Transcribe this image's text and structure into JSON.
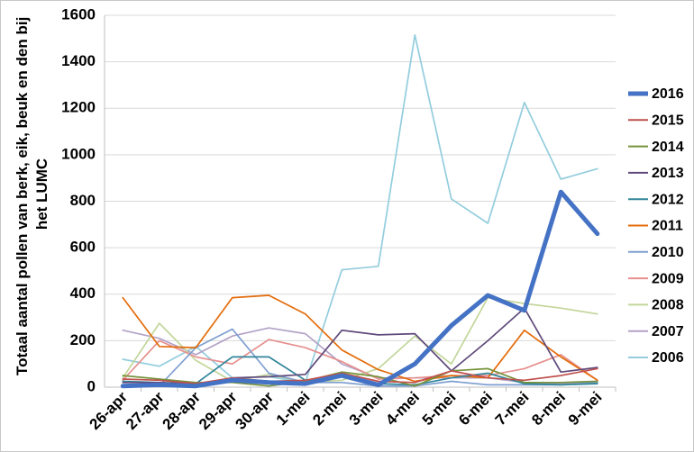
{
  "chart_data": {
    "type": "line",
    "title": "",
    "xlabel": "",
    "ylabel": "Totaal aantal pollen van berk, eik, beuk en den bij het LUMC",
    "ylabel_lines": [
      "Totaal aantal pollen van berk, eik, beuk en den bij",
      "het LUMC"
    ],
    "ylim": [
      0,
      1600
    ],
    "yticks": [
      0,
      200,
      400,
      600,
      800,
      1000,
      1200,
      1400,
      1600
    ],
    "grid": true,
    "legend_position": "right",
    "categories": [
      "26-apr",
      "27-apr",
      "28-apr",
      "29-apr",
      "30-apr",
      "1-mei",
      "2-mei",
      "3-mei",
      "4-mei",
      "5-mei",
      "6-mei",
      "7-mei",
      "8-mei",
      "9-mei"
    ],
    "series": [
      {
        "name": "2016",
        "color": "#4472c4",
        "bold": true,
        "values": [
          5,
          10,
          5,
          30,
          20,
          15,
          50,
          10,
          100,
          265,
          395,
          330,
          840,
          660
        ]
      },
      {
        "name": "2015",
        "color": "#c0504d",
        "values": [
          35,
          30,
          15,
          40,
          25,
          30,
          60,
          25,
          20,
          70,
          40,
          30,
          50,
          80
        ]
      },
      {
        "name": "2014",
        "color": "#77933c",
        "values": [
          50,
          35,
          20,
          20,
          5,
          25,
          65,
          45,
          5,
          70,
          80,
          20,
          20,
          25
        ]
      },
      {
        "name": "2013",
        "color": "#604a7b",
        "values": [
          20,
          20,
          10,
          40,
          45,
          55,
          245,
          225,
          230,
          70,
          200,
          340,
          65,
          85
        ]
      },
      {
        "name": "2012",
        "color": "#31859c",
        "values": [
          25,
          20,
          15,
          130,
          130,
          30,
          55,
          15,
          10,
          40,
          60,
          15,
          10,
          15
        ]
      },
      {
        "name": "2011",
        "color": "#e46c0a",
        "values": [
          385,
          175,
          170,
          385,
          395,
          315,
          160,
          75,
          25,
          50,
          40,
          245,
          130,
          30
        ]
      },
      {
        "name": "2010",
        "color": "#7f9fd0",
        "values": [
          10,
          5,
          170,
          250,
          60,
          20,
          20,
          5,
          5,
          25,
          10,
          10,
          10,
          20
        ]
      },
      {
        "name": "2009",
        "color": "#e6908e",
        "values": [
          30,
          200,
          130,
          100,
          205,
          170,
          110,
          35,
          40,
          50,
          50,
          80,
          140,
          30
        ]
      },
      {
        "name": "2008",
        "color": "#c3d69b",
        "values": [
          40,
          275,
          115,
          25,
          55,
          20,
          30,
          80,
          220,
          100,
          385,
          360,
          340,
          315
        ]
      },
      {
        "name": "2007",
        "color": "#b3a2c7",
        "values": [
          245,
          210,
          140,
          220,
          255,
          230,
          100,
          40,
          40,
          40,
          40,
          20,
          15,
          20
        ]
      },
      {
        "name": "2006",
        "color": "#93cddd",
        "values": [
          120,
          90,
          175,
          40,
          45,
          20,
          505,
          520,
          1515,
          810,
          705,
          1225,
          895,
          940
        ]
      }
    ]
  }
}
